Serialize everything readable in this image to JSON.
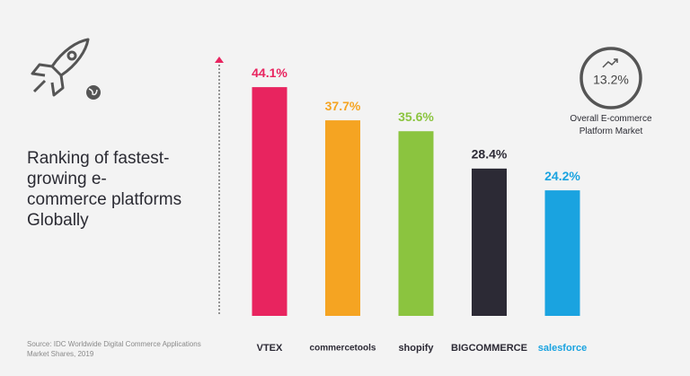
{
  "chart_data": {
    "type": "bar",
    "title": "Ranking of fastest-growing e-commerce platforms Globally",
    "categories": [
      "VTEX",
      "commercetools",
      "shopify",
      "BIGCOMMERCE",
      "salesforce"
    ],
    "values": [
      44.1,
      37.7,
      35.6,
      28.4,
      24.2
    ],
    "value_labels": [
      "44.1%",
      "37.7%",
      "35.6%",
      "28.4%",
      "24.2%"
    ],
    "colors": [
      "#e8245f",
      "#f5a422",
      "#8bc43f",
      "#2c2a35",
      "#1aa3e0"
    ],
    "ylim": [
      0,
      50
    ],
    "annotation": {
      "label": "13.2%",
      "caption": "Overall E-commerce Platform Market"
    },
    "source": "Source: IDC Worldwide Digital Commerce Applications Market Shares, 2019"
  }
}
